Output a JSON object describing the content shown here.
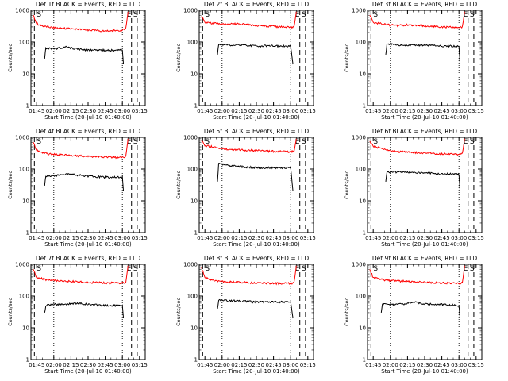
{
  "chart_data": [
    {
      "type": "line",
      "title": "Det 1f BLACK = Events, RED = LLD",
      "xlabel": "Start Time (20-Jul-10 01:40:00)",
      "ylabel": "Counts/sec",
      "ylim": [
        1,
        1000
      ],
      "yscale": "log",
      "xlim": [
        "01:40",
        "03:20"
      ],
      "xticks": [
        "01:45",
        "02:00",
        "02:15",
        "02:30",
        "02:45",
        "03:00",
        "03:15"
      ],
      "yticks": [
        "1",
        "10",
        "100",
        "1000"
      ],
      "marker_labels": [
        "E",
        "S"
      ],
      "series": [
        {
          "color": "#ff0000",
          "x": [
            "01:42",
            "01:45",
            "01:50",
            "02:00",
            "02:15",
            "02:30",
            "02:45",
            "03:00",
            "03:03",
            "03:05"
          ],
          "y": [
            700,
            380,
            320,
            280,
            260,
            240,
            220,
            240,
            260,
            900
          ]
        },
        {
          "color": "#000000",
          "x": [
            "01:52",
            "01:53",
            "02:00",
            "02:10",
            "02:20",
            "02:30",
            "02:40",
            "02:50",
            "03:00",
            "03:01"
          ],
          "y": [
            30,
            65,
            60,
            70,
            60,
            55,
            55,
            55,
            55,
            20
          ]
        }
      ],
      "lines": {
        "dotted": [
          "02:00",
          "03:00"
        ],
        "dashed": [
          "01:43",
          "03:08",
          "03:13"
        ]
      }
    },
    {
      "type": "line",
      "title": "Det 2f BLACK = Events, RED = LLD",
      "xlabel": "Start Time (20-Jul-10 01:40:00)",
      "ylabel": "Counts/sec",
      "ylim": [
        1,
        1000
      ],
      "yscale": "log",
      "xlim": [
        "01:40",
        "03:20"
      ],
      "xticks": [
        "01:45",
        "02:00",
        "02:15",
        "02:30",
        "02:45",
        "03:00",
        "03:15"
      ],
      "yticks": [
        "1",
        "10",
        "100",
        "1000"
      ],
      "marker_labels": [
        "E",
        "S"
      ],
      "series": [
        {
          "color": "#ff0000",
          "x": [
            "01:42",
            "01:45",
            "01:55",
            "02:05",
            "02:15",
            "02:30",
            "02:45",
            "03:00",
            "03:03",
            "03:05"
          ],
          "y": [
            650,
            420,
            380,
            360,
            380,
            330,
            310,
            290,
            300,
            900
          ]
        },
        {
          "color": "#000000",
          "x": [
            "01:56",
            "01:57",
            "02:05",
            "02:15",
            "02:30",
            "02:45",
            "03:00",
            "03:02"
          ],
          "y": [
            40,
            85,
            80,
            80,
            75,
            75,
            75,
            20
          ]
        }
      ],
      "lines": {
        "dotted": [
          "02:00",
          "03:00"
        ],
        "dashed": [
          "01:43",
          "03:08",
          "03:13"
        ]
      }
    },
    {
      "type": "line",
      "title": "Det 3f BLACK = Events, RED = LLD",
      "xlabel": "Start Time (20-Jul-10 01:40:00)",
      "ylabel": "Counts/sec",
      "ylim": [
        1,
        1000
      ],
      "yscale": "log",
      "xlim": [
        "01:40",
        "03:20"
      ],
      "xticks": [
        "01:45",
        "02:00",
        "02:15",
        "02:30",
        "02:45",
        "03:00",
        "03:15"
      ],
      "yticks": [
        "1",
        "10",
        "100",
        "1000"
      ],
      "marker_labels": [
        "E",
        "S"
      ],
      "series": [
        {
          "color": "#ff0000",
          "x": [
            "01:42",
            "01:45",
            "01:55",
            "02:05",
            "02:15",
            "02:30",
            "02:45",
            "03:00",
            "03:03",
            "03:05"
          ],
          "y": [
            700,
            420,
            360,
            330,
            350,
            320,
            300,
            290,
            300,
            900
          ]
        },
        {
          "color": "#000000",
          "x": [
            "01:56",
            "01:57",
            "02:05",
            "02:15",
            "02:30",
            "02:45",
            "03:00",
            "03:01"
          ],
          "y": [
            40,
            90,
            80,
            80,
            80,
            75,
            75,
            20
          ]
        }
      ],
      "lines": {
        "dotted": [
          "02:00",
          "03:00"
        ],
        "dashed": [
          "01:43",
          "03:08",
          "03:13"
        ]
      }
    },
    {
      "type": "line",
      "title": "Det 4f BLACK = Events, RED = LLD",
      "xlabel": "Start Time (20-Jul-10 01:40:00)",
      "ylabel": "Counts/sec",
      "ylim": [
        1,
        1000
      ],
      "yscale": "log",
      "xlim": [
        "01:40",
        "03:20"
      ],
      "xticks": [
        "01:45",
        "02:00",
        "02:15",
        "02:30",
        "02:45",
        "03:00",
        "03:15"
      ],
      "yticks": [
        "1",
        "10",
        "100",
        "1000"
      ],
      "marker_labels": [
        "E",
        "S"
      ],
      "series": [
        {
          "color": "#ff0000",
          "x": [
            "01:42",
            "01:45",
            "01:55",
            "02:05",
            "02:15",
            "02:30",
            "02:45",
            "03:00",
            "03:03",
            "03:05"
          ],
          "y": [
            700,
            380,
            300,
            280,
            270,
            250,
            240,
            230,
            250,
            900
          ]
        },
        {
          "color": "#000000",
          "x": [
            "01:52",
            "01:53",
            "02:00",
            "02:10",
            "02:20",
            "02:30",
            "02:45",
            "03:00",
            "03:01"
          ],
          "y": [
            30,
            60,
            60,
            70,
            65,
            60,
            55,
            55,
            20
          ]
        }
      ],
      "lines": {
        "dotted": [
          "02:00",
          "03:00"
        ],
        "dashed": [
          "01:43",
          "03:08",
          "03:13"
        ]
      }
    },
    {
      "type": "line",
      "title": "Det 5f BLACK = Events, RED = LLD",
      "xlabel": "Start Time (20-Jul-10 01:40:00)",
      "ylabel": "Counts/sec",
      "ylim": [
        1,
        1000
      ],
      "yscale": "log",
      "xlim": [
        "01:40",
        "03:20"
      ],
      "xticks": [
        "01:45",
        "02:00",
        "02:15",
        "02:30",
        "02:45",
        "03:00",
        "03:15"
      ],
      "yticks": [
        "1",
        "10",
        "100",
        "1000"
      ],
      "marker_labels": [
        "E",
        "S"
      ],
      "series": [
        {
          "color": "#ff0000",
          "x": [
            "01:42",
            "01:45",
            "01:55",
            "02:05",
            "02:15",
            "02:30",
            "02:45",
            "03:00",
            "03:03",
            "03:05"
          ],
          "y": [
            800,
            550,
            480,
            420,
            400,
            380,
            360,
            350,
            360,
            900
          ]
        },
        {
          "color": "#000000",
          "x": [
            "01:56",
            "01:57",
            "02:05",
            "02:15",
            "02:30",
            "02:45",
            "03:00",
            "03:02"
          ],
          "y": [
            40,
            150,
            130,
            120,
            110,
            110,
            110,
            20
          ]
        }
      ],
      "lines": {
        "dotted": [
          "02:00",
          "03:00"
        ],
        "dashed": [
          "01:43",
          "03:08",
          "03:13"
        ]
      }
    },
    {
      "type": "line",
      "title": "Det 6f BLACK = Events, RED = LLD",
      "xlabel": "Start Time (20-Jul-10 01:40:00)",
      "ylabel": "Counts/sec",
      "ylim": [
        1,
        1000
      ],
      "yscale": "log",
      "xlim": [
        "01:40",
        "03:20"
      ],
      "xticks": [
        "01:45",
        "02:00",
        "02:15",
        "02:30",
        "02:45",
        "03:00",
        "03:15"
      ],
      "yticks": [
        "1",
        "10",
        "100",
        "1000"
      ],
      "marker_labels": [
        "E",
        "S"
      ],
      "series": [
        {
          "color": "#ff0000",
          "x": [
            "01:42",
            "01:45",
            "01:55",
            "02:05",
            "02:15",
            "02:30",
            "02:45",
            "03:00",
            "03:03",
            "03:05"
          ],
          "y": [
            750,
            520,
            420,
            360,
            340,
            320,
            300,
            290,
            300,
            900
          ]
        },
        {
          "color": "#000000",
          "x": [
            "01:56",
            "01:57",
            "02:05",
            "02:15",
            "02:30",
            "02:45",
            "03:00",
            "03:01"
          ],
          "y": [
            40,
            80,
            80,
            80,
            75,
            70,
            70,
            20
          ]
        }
      ],
      "lines": {
        "dotted": [
          "02:00",
          "03:00"
        ],
        "dashed": [
          "01:43",
          "03:08",
          "03:13"
        ]
      }
    },
    {
      "type": "line",
      "title": "Det 7f BLACK = Events, RED = LLD",
      "xlabel": "Start Time (20-Jul-10 01:40:00)",
      "ylabel": "Counts/sec",
      "ylim": [
        1,
        1000
      ],
      "yscale": "log",
      "xlim": [
        "01:40",
        "03:20"
      ],
      "xticks": [
        "01:45",
        "02:00",
        "02:15",
        "02:30",
        "02:45",
        "03:00",
        "03:15"
      ],
      "yticks": [
        "1",
        "10",
        "100",
        "1000"
      ],
      "marker_labels": [
        "E",
        "S"
      ],
      "series": [
        {
          "color": "#ff0000",
          "x": [
            "01:42",
            "01:45",
            "01:55",
            "02:05",
            "02:15",
            "02:30",
            "02:45",
            "03:00",
            "03:03",
            "03:05"
          ],
          "y": [
            700,
            380,
            320,
            300,
            290,
            270,
            260,
            260,
            270,
            900
          ]
        },
        {
          "color": "#000000",
          "x": [
            "01:52",
            "01:53",
            "02:00",
            "02:10",
            "02:20",
            "02:30",
            "02:45",
            "03:00",
            "03:01"
          ],
          "y": [
            30,
            50,
            55,
            55,
            60,
            55,
            50,
            50,
            20
          ]
        }
      ],
      "lines": {
        "dotted": [
          "02:00",
          "03:00"
        ],
        "dashed": [
          "01:43",
          "03:08",
          "03:13"
        ]
      }
    },
    {
      "type": "line",
      "title": "Det 8f BLACK = Events, RED = LLD",
      "xlabel": "Start Time (20-Jul-10 01:40:00)",
      "ylabel": "Counts/sec",
      "ylim": [
        1,
        1000
      ],
      "yscale": "log",
      "xlim": [
        "01:40",
        "03:20"
      ],
      "xticks": [
        "01:45",
        "02:00",
        "02:15",
        "02:30",
        "02:45",
        "03:00",
        "03:15"
      ],
      "yticks": [
        "1",
        "10",
        "100",
        "1000"
      ],
      "marker_labels": [
        "E",
        "S"
      ],
      "series": [
        {
          "color": "#ff0000",
          "x": [
            "01:42",
            "01:45",
            "01:55",
            "02:05",
            "02:15",
            "02:30",
            "02:45",
            "03:00",
            "03:03",
            "03:05"
          ],
          "y": [
            800,
            380,
            300,
            280,
            270,
            260,
            250,
            250,
            260,
            900
          ]
        },
        {
          "color": "#000000",
          "x": [
            "01:56",
            "01:57",
            "02:05",
            "02:15",
            "02:30",
            "02:45",
            "03:00",
            "03:02"
          ],
          "y": [
            40,
            75,
            70,
            70,
            65,
            65,
            65,
            20
          ]
        }
      ],
      "lines": {
        "dotted": [
          "02:00",
          "03:00"
        ],
        "dashed": [
          "01:43",
          "03:08",
          "03:13"
        ]
      }
    },
    {
      "type": "line",
      "title": "Det 9f BLACK = Events, RED = LLD",
      "xlabel": "Start Time (20-Jul-10 01:40:00)",
      "ylabel": "Counts/sec",
      "ylim": [
        1,
        1000
      ],
      "yscale": "log",
      "xlim": [
        "01:40",
        "03:20"
      ],
      "xticks": [
        "01:45",
        "02:00",
        "02:15",
        "02:30",
        "02:45",
        "03:00",
        "03:15"
      ],
      "yticks": [
        "1",
        "10",
        "100",
        "1000"
      ],
      "marker_labels": [
        "E",
        "S"
      ],
      "series": [
        {
          "color": "#ff0000",
          "x": [
            "01:42",
            "01:45",
            "01:55",
            "02:05",
            "02:15",
            "02:30",
            "02:45",
            "03:00",
            "03:03",
            "03:05"
          ],
          "y": [
            700,
            380,
            320,
            300,
            290,
            270,
            260,
            250,
            260,
            900
          ]
        },
        {
          "color": "#000000",
          "x": [
            "01:52",
            "01:53",
            "02:00",
            "02:10",
            "02:20",
            "02:30",
            "02:45",
            "03:00",
            "03:01"
          ],
          "y": [
            30,
            55,
            55,
            55,
            65,
            55,
            55,
            50,
            20
          ]
        }
      ],
      "lines": {
        "dotted": [
          "02:00",
          "03:00"
        ],
        "dashed": [
          "01:43",
          "03:08",
          "03:13"
        ]
      }
    }
  ]
}
